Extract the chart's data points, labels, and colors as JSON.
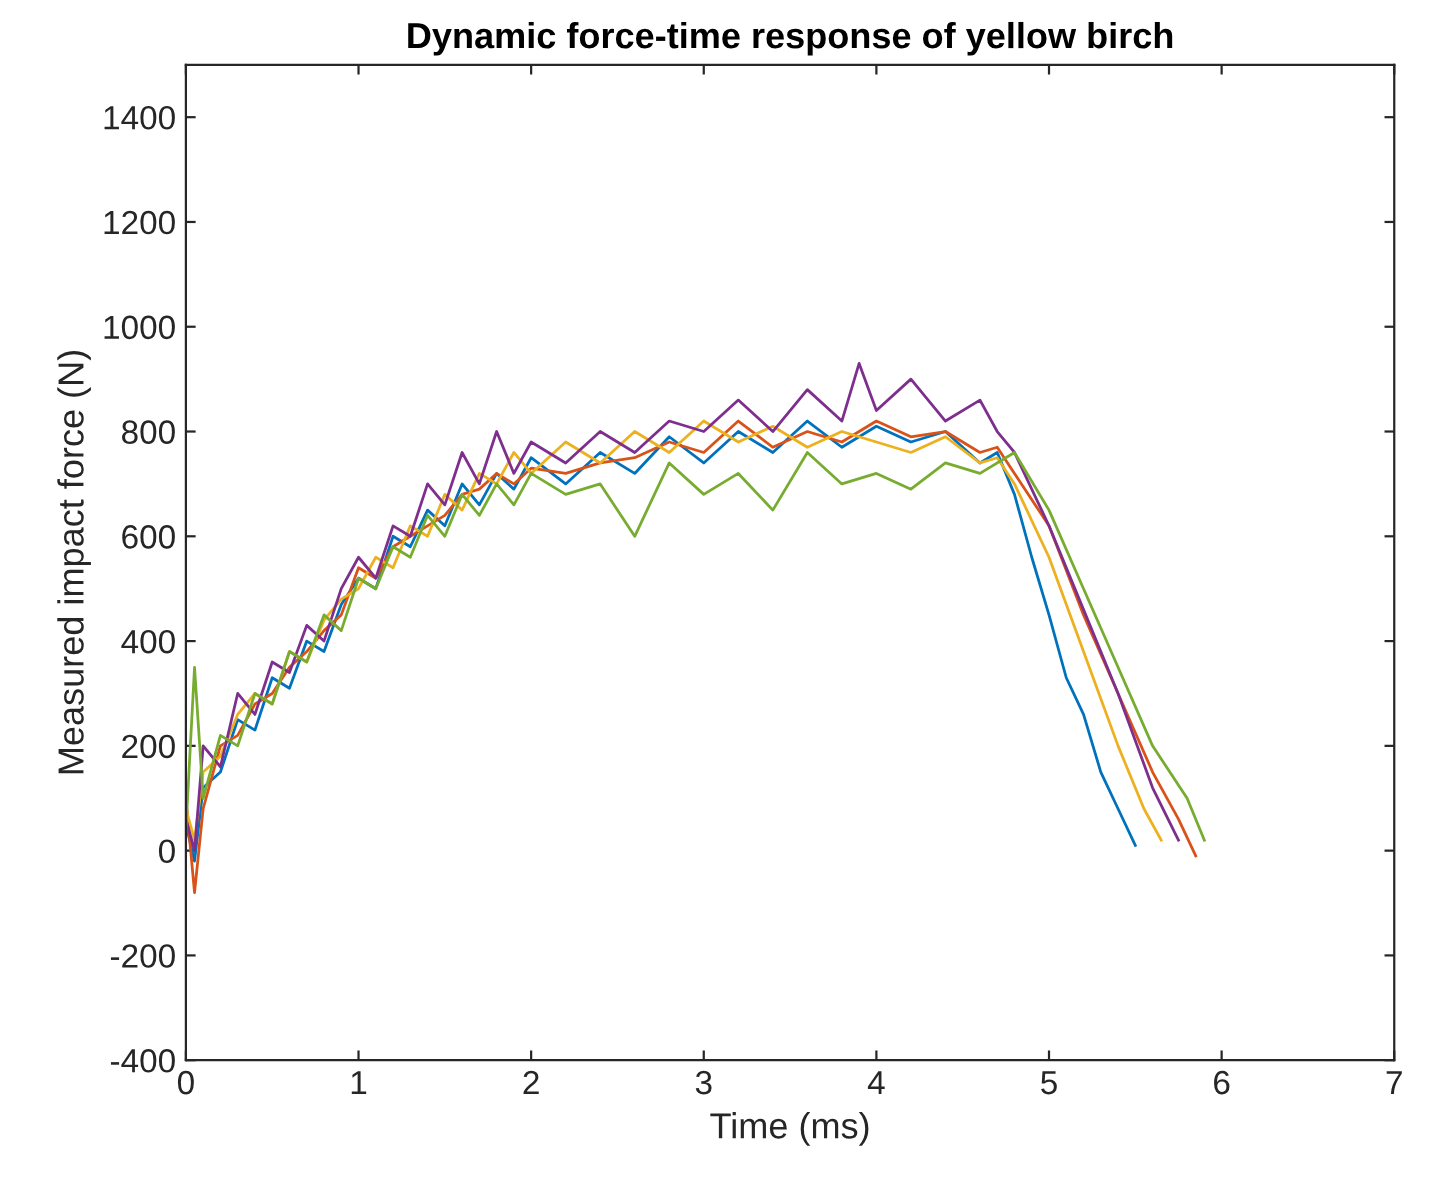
{
  "chart_data": {
    "type": "line",
    "title": "Dynamic force-time response of yellow birch",
    "xlabel": "Time (ms)",
    "ylabel": "Measured impact force (N)",
    "xlim": [
      0,
      7
    ],
    "xticks": [
      0,
      1,
      2,
      3,
      4,
      5,
      6,
      7
    ],
    "ylim": [
      -400,
      1500
    ],
    "yticks": [
      -400,
      -200,
      0,
      200,
      400,
      600,
      800,
      1000,
      1200,
      1400
    ],
    "grid": false,
    "legend": false,
    "line_style": "solid",
    "marker": "none",
    "series": [
      {
        "color": "#0072bd",
        "x": [
          0,
          0.05,
          0.1,
          0.2,
          0.3,
          0.4,
          0.5,
          0.6,
          0.7,
          0.8,
          0.9,
          1.0,
          1.1,
          1.2,
          1.3,
          1.4,
          1.5,
          1.6,
          1.7,
          1.8,
          1.9,
          2.0,
          2.2,
          2.4,
          2.6,
          2.8,
          3.0,
          3.2,
          3.4,
          3.6,
          3.8,
          4.0,
          4.2,
          4.4,
          4.6,
          4.7,
          4.8,
          4.9,
          5.0,
          5.1,
          5.2,
          5.3,
          5.4,
          5.5
        ],
        "values": [
          50,
          -20,
          120,
          150,
          250,
          230,
          330,
          310,
          400,
          380,
          470,
          520,
          500,
          600,
          580,
          650,
          620,
          700,
          660,
          720,
          690,
          750,
          700,
          760,
          720,
          790,
          740,
          800,
          760,
          820,
          770,
          810,
          780,
          800,
          740,
          760,
          680,
          560,
          450,
          330,
          260,
          150,
          80,
          10
        ]
      },
      {
        "color": "#d95319",
        "x": [
          0,
          0.05,
          0.1,
          0.2,
          0.3,
          0.4,
          0.5,
          0.6,
          0.7,
          0.8,
          0.9,
          1.0,
          1.1,
          1.2,
          1.3,
          1.4,
          1.5,
          1.6,
          1.7,
          1.8,
          1.9,
          2.0,
          2.2,
          2.4,
          2.6,
          2.8,
          3.0,
          3.2,
          3.4,
          3.6,
          3.8,
          4.0,
          4.2,
          4.4,
          4.6,
          4.7,
          4.8,
          5.0,
          5.2,
          5.4,
          5.6,
          5.75,
          5.85
        ],
        "values": [
          100,
          -80,
          80,
          200,
          220,
          280,
          300,
          350,
          380,
          420,
          450,
          540,
          520,
          580,
          600,
          620,
          640,
          680,
          690,
          720,
          700,
          730,
          720,
          740,
          750,
          780,
          760,
          820,
          770,
          800,
          780,
          820,
          790,
          800,
          760,
          770,
          720,
          620,
          450,
          300,
          150,
          60,
          -10
        ]
      },
      {
        "color": "#edb120",
        "x": [
          0,
          0.05,
          0.1,
          0.2,
          0.3,
          0.4,
          0.5,
          0.6,
          0.7,
          0.8,
          0.9,
          1.0,
          1.1,
          1.2,
          1.3,
          1.4,
          1.5,
          1.6,
          1.7,
          1.8,
          1.9,
          2.0,
          2.2,
          2.4,
          2.6,
          2.8,
          3.0,
          3.2,
          3.4,
          3.6,
          3.8,
          4.0,
          4.2,
          4.4,
          4.6,
          4.7,
          4.8,
          5.0,
          5.2,
          5.4,
          5.55,
          5.65
        ],
        "values": [
          80,
          20,
          150,
          180,
          260,
          300,
          280,
          380,
          360,
          440,
          480,
          500,
          560,
          540,
          620,
          600,
          680,
          650,
          720,
          700,
          760,
          720,
          780,
          740,
          800,
          760,
          820,
          780,
          810,
          770,
          800,
          780,
          760,
          790,
          740,
          750,
          700,
          560,
          380,
          200,
          80,
          20
        ]
      },
      {
        "color": "#7e2f8e",
        "x": [
          0,
          0.05,
          0.1,
          0.2,
          0.3,
          0.4,
          0.5,
          0.6,
          0.7,
          0.8,
          0.9,
          1.0,
          1.1,
          1.2,
          1.3,
          1.4,
          1.5,
          1.6,
          1.7,
          1.8,
          1.9,
          2.0,
          2.2,
          2.4,
          2.6,
          2.8,
          3.0,
          3.2,
          3.4,
          3.6,
          3.8,
          3.9,
          4.0,
          4.2,
          4.4,
          4.6,
          4.7,
          4.8,
          5.0,
          5.2,
          5.4,
          5.6,
          5.75
        ],
        "values": [
          60,
          0,
          200,
          160,
          300,
          260,
          360,
          340,
          430,
          400,
          500,
          560,
          520,
          620,
          600,
          700,
          660,
          760,
          700,
          800,
          720,
          780,
          740,
          800,
          760,
          820,
          800,
          860,
          800,
          880,
          820,
          930,
          840,
          900,
          820,
          860,
          800,
          760,
          620,
          460,
          300,
          120,
          20
        ]
      },
      {
        "color": "#77ac30",
        "x": [
          0,
          0.05,
          0.1,
          0.2,
          0.3,
          0.4,
          0.5,
          0.6,
          0.7,
          0.8,
          0.9,
          1.0,
          1.1,
          1.2,
          1.3,
          1.4,
          1.5,
          1.6,
          1.7,
          1.8,
          1.9,
          2.0,
          2.2,
          2.4,
          2.6,
          2.8,
          3.0,
          3.2,
          3.4,
          3.6,
          3.8,
          4.0,
          4.2,
          4.4,
          4.6,
          4.8,
          5.0,
          5.2,
          5.4,
          5.6,
          5.8,
          5.9
        ],
        "values": [
          40,
          350,
          100,
          220,
          200,
          300,
          280,
          380,
          360,
          450,
          420,
          520,
          500,
          580,
          560,
          640,
          600,
          680,
          640,
          700,
          660,
          720,
          680,
          700,
          600,
          740,
          680,
          720,
          650,
          760,
          700,
          720,
          690,
          740,
          720,
          760,
          650,
          500,
          350,
          200,
          100,
          20
        ]
      }
    ]
  }
}
